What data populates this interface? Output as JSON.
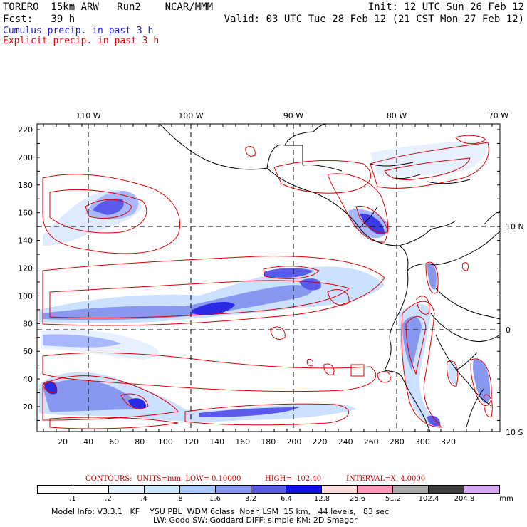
{
  "header": {
    "line1_left": "TORERO  15km ARW   Run2    NCAR/MMM",
    "line1_right": "Init: 12 UTC Sun 26 Feb 12",
    "line2_left": "Fcst:   39 h",
    "line2_right": "Valid: 03 UTC Tue 28 Feb 12 (21 CST Mon 27 Feb 12)",
    "legend_cumulus": "Cumulus precip. in past 3 h",
    "legend_explicit": "Explicit precip. in past 3 h",
    "cumulus_color": "#1a1acc",
    "explicit_color": "#dd0000"
  },
  "map": {
    "top_ticks": [
      "110 W",
      "100 W",
      "90 W",
      "80 W",
      "70 W"
    ],
    "right_ticks": [
      "10 N",
      "0",
      "10 S"
    ],
    "left_ticks": [
      "220",
      "200",
      "180",
      "160",
      "140",
      "120",
      "100",
      "80",
      "60",
      "40",
      "20"
    ],
    "bottom_ticks": [
      "20",
      "40",
      "60",
      "80",
      "100",
      "120",
      "140",
      "160",
      "180",
      "200",
      "220",
      "240",
      "260",
      "280",
      "300",
      "320"
    ]
  },
  "contours": {
    "label": "CONTOURS:  UNITS=mm  LOW= 0.10000",
    "high": "HIGH=  102.40",
    "interval": "INTERVAL=X  4.0000"
  },
  "colorbar": {
    "labels": [
      ".1",
      ".2",
      ".4",
      ".8",
      "1.6",
      "3.2",
      "6.4",
      "12.8",
      "25.6",
      "51.2",
      "102.4",
      "204.8"
    ],
    "unit": "mm",
    "colors": [
      "#ffffff",
      "#ffffff",
      "#e6f2ff",
      "#cce8ff",
      "#a8c8ff",
      "#8898f0",
      "#5a5aec",
      "#1010e0",
      "#ffdcdc",
      "#ff99bb",
      "#aaaaaa",
      "#404040",
      "#d6a8f2"
    ]
  },
  "footer": {
    "line1": "Model Info: V3.3.1   KF    YSU PBL  WDM 6class  Noah LSM  15 km,   44 levels,   83 sec",
    "line2": "LW: Godd SW: Goddard DIFF: simple KM: 2D Smagor"
  }
}
